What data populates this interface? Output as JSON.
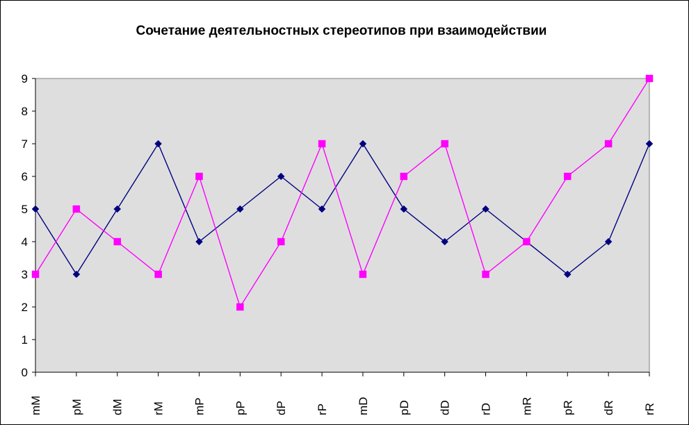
{
  "chart_data": {
    "type": "line",
    "title": "Сочетание деятельностных стереотипов при взаимодействии",
    "xlabel": "",
    "ylabel": "",
    "categories": [
      "mM",
      "pM",
      "dM",
      "rM",
      "mP",
      "pP",
      "dP",
      "rP",
      "mD",
      "pD",
      "dD",
      "rD",
      "mR",
      "pR",
      "dR",
      "rR"
    ],
    "ylim": [
      0,
      9
    ],
    "yticks": [
      "0",
      "1",
      "2",
      "3",
      "4",
      "5",
      "6",
      "7",
      "8",
      "9"
    ],
    "grid": false,
    "legend": "none",
    "plot_background": "#dedede",
    "series": [
      {
        "values": [
          5,
          3,
          5,
          7,
          4,
          5,
          6,
          5,
          7,
          5,
          4,
          5,
          4,
          3,
          4,
          7
        ],
        "color": "#000080",
        "marker": "diamond"
      },
      {
        "values": [
          3,
          5,
          4,
          3,
          6,
          2,
          4,
          7,
          3,
          6,
          7,
          3,
          4,
          6,
          7,
          9
        ],
        "color": "#ff00ff",
        "marker": "square"
      }
    ]
  }
}
